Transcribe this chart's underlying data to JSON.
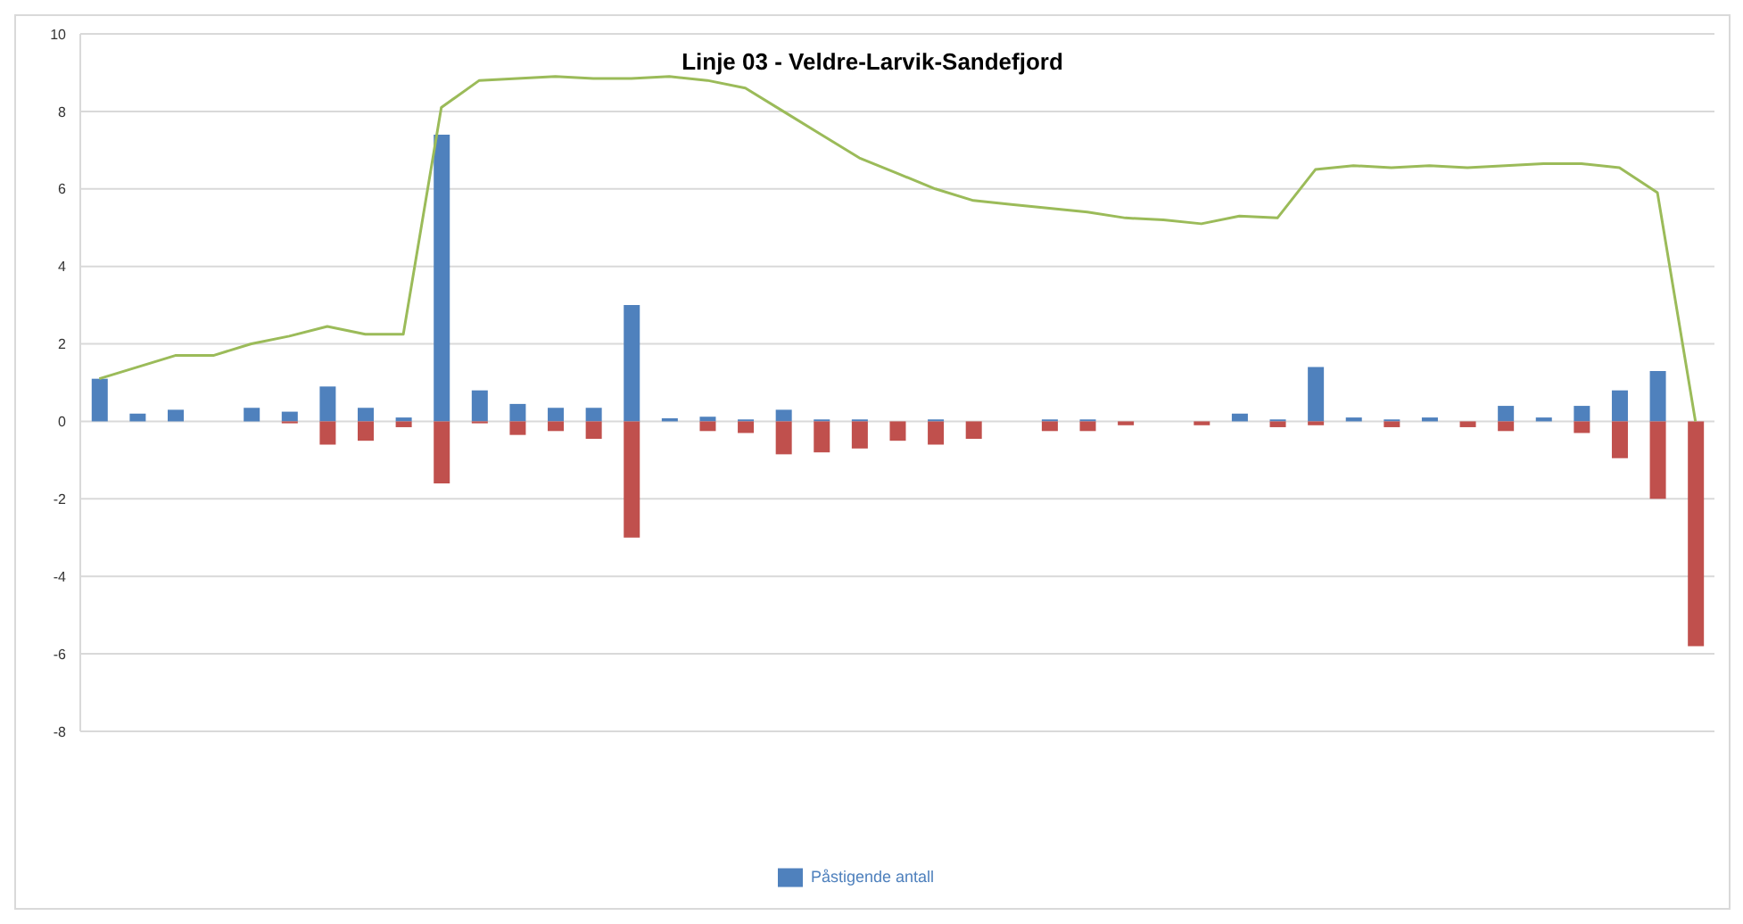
{
  "chart_data": {
    "type": "bar",
    "title": "Linje 03 - Veldre-Larvik-Sandefjord",
    "categories": [
      null,
      null,
      null,
      null,
      null,
      null,
      null,
      null,
      null,
      null,
      null,
      null,
      null,
      null,
      null,
      null,
      null,
      null,
      null,
      null,
      null,
      null,
      null,
      null,
      null,
      null,
      null,
      null,
      null,
      null,
      null,
      null,
      null,
      null,
      null,
      null,
      null,
      null,
      null,
      null,
      null,
      null,
      null
    ],
    "stacked": true,
    "series": [
      {
        "name": "Påstigende antall",
        "color": "#4f81bd",
        "values": [
          1.1,
          0.2,
          0.3,
          0,
          0.35,
          0.25,
          0.9,
          0.35,
          0.1,
          7.4,
          0.8,
          0.45,
          0.35,
          0.35,
          3.0,
          0.08,
          0.12,
          0.05,
          0.3,
          0.05,
          0.05,
          0,
          0.05,
          0,
          0,
          0.05,
          0.05,
          0,
          0,
          0,
          0.2,
          0.05,
          1.4,
          0.1,
          0.05,
          0.1,
          null,
          0.4,
          0.1,
          0.4,
          0.8,
          1.3,
          0
        ]
      },
      {
        "color": "#c0504d",
        "values": [
          0,
          0,
          0,
          0,
          0,
          -0.05,
          -0.6,
          -0.5,
          -0.15,
          -1.6,
          -0.05,
          -0.35,
          -0.25,
          -0.45,
          -3.0,
          0,
          -0.25,
          -0.3,
          -0.85,
          -0.8,
          -0.7,
          -0.5,
          -0.6,
          -0.45,
          0,
          -0.25,
          -0.25,
          -0.1,
          0,
          -0.1,
          0,
          -0.15,
          -0.1,
          0,
          -0.15,
          0,
          -0.15,
          -0.25,
          0,
          -0.3,
          -0.95,
          -2.0,
          -5.8
        ]
      },
      {
        "type": "line",
        "color": "#9bbb59",
        "values": [
          1.1,
          1.4,
          1.7,
          1.7,
          2.0,
          2.2,
          2.45,
          2.25,
          2.25,
          8.1,
          8.8,
          8.85,
          8.9,
          8.85,
          8.85,
          8.9,
          8.8,
          8.6,
          8.0,
          7.4,
          6.8,
          6.4,
          6.0,
          5.7,
          5.6,
          5.5,
          5.4,
          5.25,
          5.2,
          5.1,
          5.3,
          5.25,
          6.5,
          6.6,
          6.55,
          6.6,
          6.55,
          6.6,
          6.65,
          6.65,
          6.55,
          5.9,
          0
        ]
      }
    ],
    "ylim": [
      -8,
      10
    ],
    "yticks": [
      -8,
      -6,
      -4,
      -2,
      0,
      2,
      4,
      6,
      8,
      10
    ],
    "grid": "y",
    "legend": "bottom",
    "marker": "none"
  }
}
